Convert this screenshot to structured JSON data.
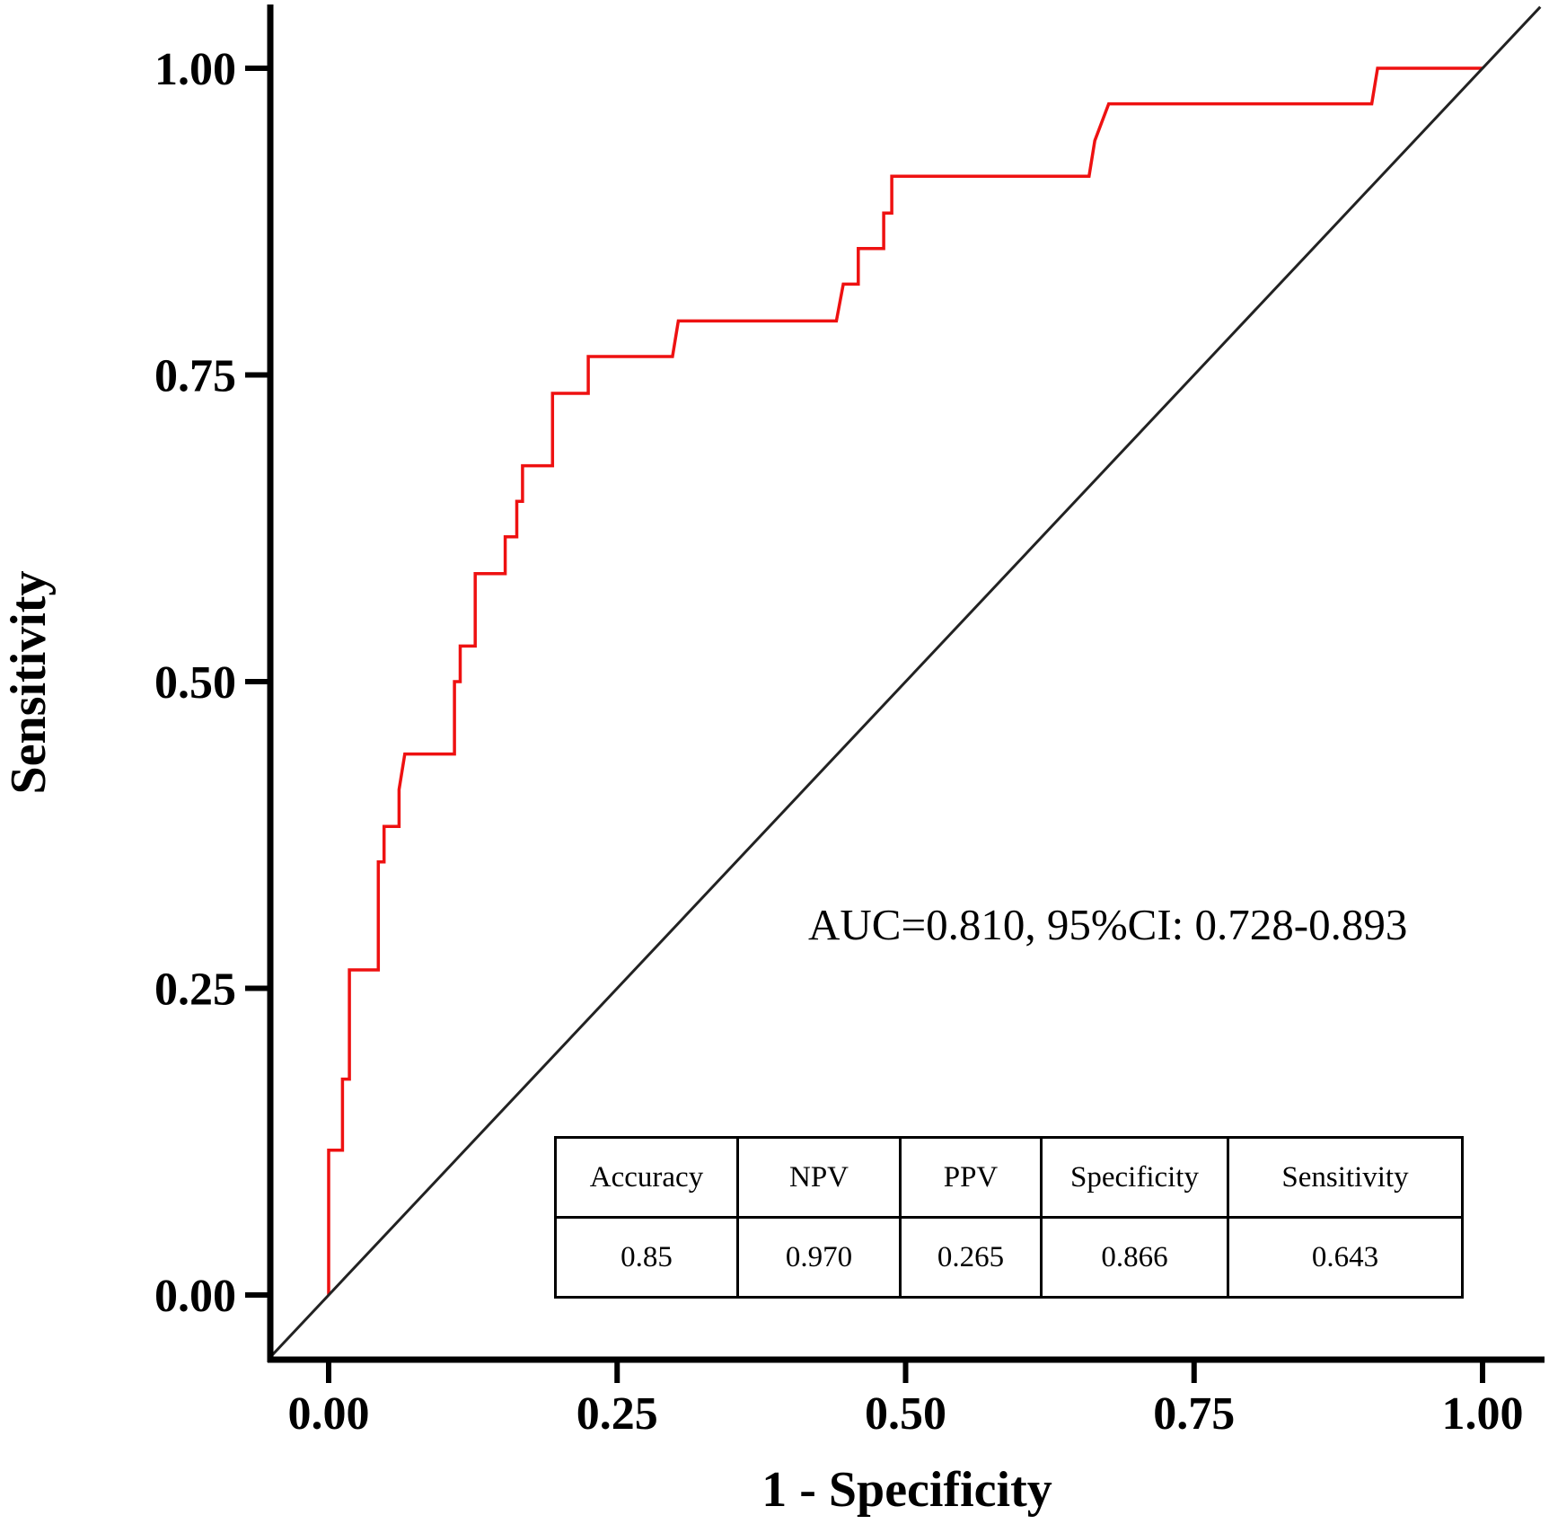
{
  "chart_data": {
    "type": "line",
    "xlabel": "1 - Specificity",
    "ylabel": "Sensitivity",
    "xlim": [
      -0.05,
      1.05
    ],
    "ylim": [
      -0.05,
      1.05
    ],
    "x_ticks": [
      "0.00",
      "0.25",
      "0.50",
      "0.75",
      "1.00"
    ],
    "y_ticks": [
      "0.00",
      "0.25",
      "0.50",
      "0.75",
      "1.00"
    ],
    "grid": false,
    "annotation": "AUC=0.810, 95%CI: 0.728-0.893",
    "series": [
      {
        "name": "ROC",
        "color": "#ee1111",
        "x": [
          0.0,
          0.0,
          0.012,
          0.012,
          0.018,
          0.018,
          0.043,
          0.043,
          0.048,
          0.048,
          0.061,
          0.061,
          0.066,
          0.109,
          0.109,
          0.114,
          0.114,
          0.127,
          0.127,
          0.153,
          0.153,
          0.163,
          0.163,
          0.168,
          0.168,
          0.194,
          0.194,
          0.225,
          0.225,
          0.298,
          0.303,
          0.44,
          0.446,
          0.459,
          0.459,
          0.481,
          0.481,
          0.488,
          0.488,
          0.659,
          0.664,
          0.676,
          0.904,
          0.909,
          1.0
        ],
        "y": [
          0.0,
          0.118,
          0.118,
          0.176,
          0.176,
          0.265,
          0.265,
          0.353,
          0.353,
          0.382,
          0.382,
          0.412,
          0.441,
          0.441,
          0.5,
          0.5,
          0.529,
          0.529,
          0.588,
          0.588,
          0.618,
          0.618,
          0.647,
          0.647,
          0.676,
          0.676,
          0.735,
          0.735,
          0.765,
          0.765,
          0.794,
          0.794,
          0.824,
          0.824,
          0.853,
          0.853,
          0.882,
          0.882,
          0.912,
          0.912,
          0.941,
          0.971,
          0.971,
          1.0,
          1.0
        ]
      },
      {
        "name": "Reference",
        "color": "#222222",
        "x": [
          -0.05,
          1.05
        ],
        "y": [
          -0.05,
          1.05
        ]
      }
    ]
  },
  "table": {
    "headers": [
      "Accuracy",
      "NPV",
      "PPV",
      "Specificity",
      "Sensitivity"
    ],
    "values": [
      "0.85",
      "0.970",
      "0.265",
      "0.866",
      "0.643"
    ]
  }
}
